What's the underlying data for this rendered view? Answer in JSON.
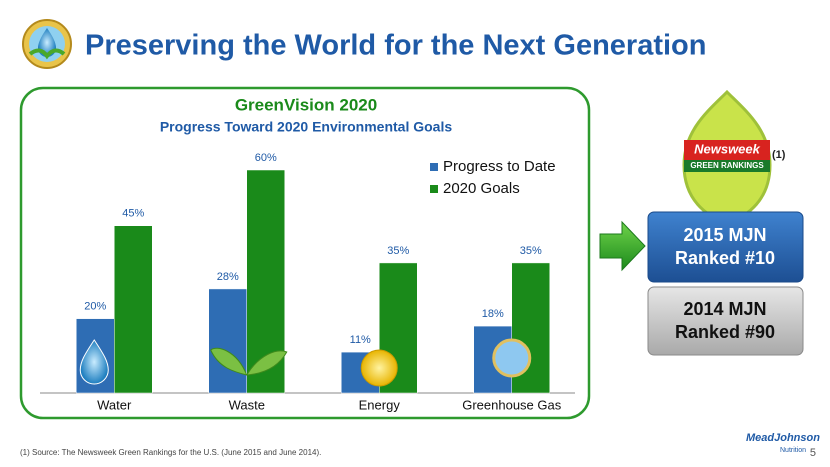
{
  "header": {
    "title": "Preserving the World for the Next Generation"
  },
  "chart_data": {
    "type": "bar",
    "title": "GreenVision 2020",
    "subtitle": "Progress Toward 2020 Environmental Goals",
    "categories": [
      "Water",
      "Waste",
      "Energy",
      "Greenhouse Gas"
    ],
    "series": [
      {
        "name": "Progress to Date",
        "color": "#2e6db4",
        "values": [
          20,
          28,
          11,
          18
        ],
        "value_labels": [
          "20%",
          "28%",
          "11%",
          "18%"
        ]
      },
      {
        "name": "2020 Goals",
        "color": "#1a8a1a",
        "values": [
          45,
          60,
          35,
          35
        ],
        "value_labels": [
          "45%",
          "60%",
          "35%",
          "35%"
        ]
      }
    ],
    "legend": "upper right",
    "grid": false
  },
  "badge": {
    "brand": "Newsweek",
    "subtitle": "GREEN RANKINGS",
    "note": "(1)"
  },
  "rankings": [
    {
      "line1": "2015 MJN",
      "line2": "Ranked #10"
    },
    {
      "line1": "2014 MJN",
      "line2": "Ranked #90"
    }
  ],
  "footnote": "(1)  Source: The Newsweek Green Rankings for the U.S. (June 2015 and June 2014).",
  "page_number": "5",
  "logo": {
    "line1": "MeadJohnson",
    "line2": "Nutrition"
  }
}
